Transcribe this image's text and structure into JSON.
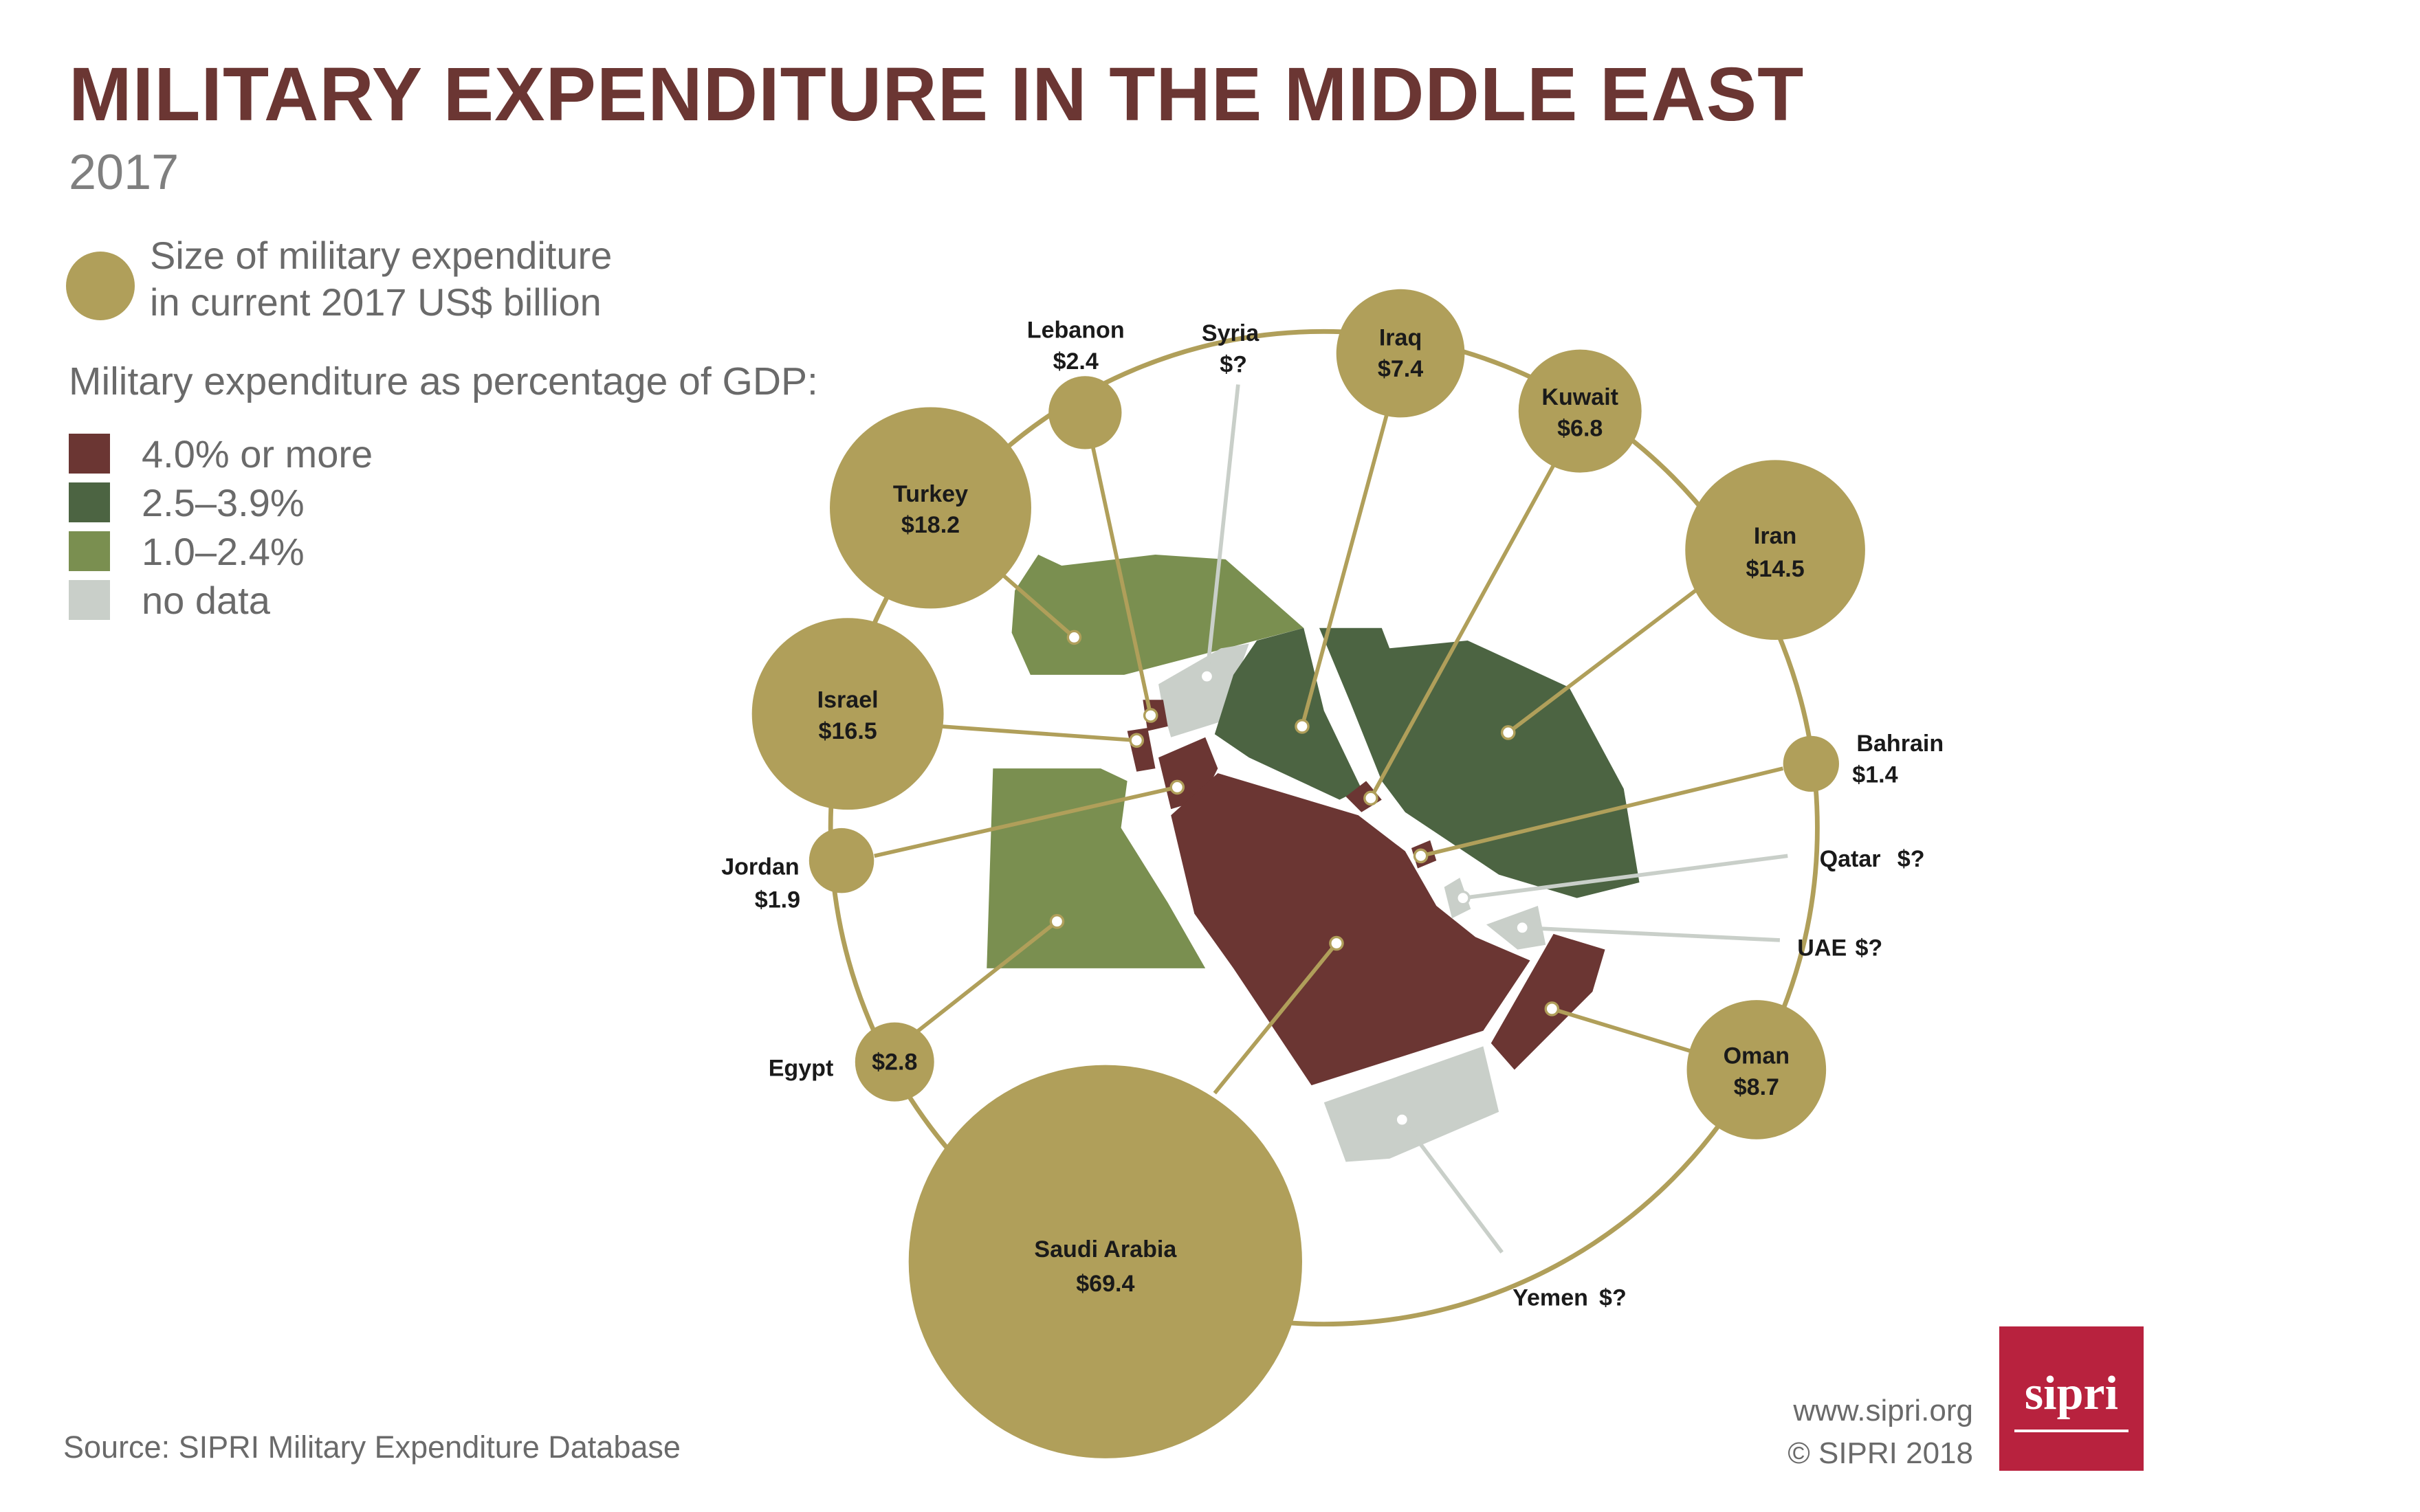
{
  "title": "MILITARY EXPENDITURE IN THE MIDDLE EAST",
  "subtitle": "2017",
  "legend": {
    "size_text": "Size of military expenditure\nin current 2017 US$ billion",
    "gdp_heading": "Military expenditure as percentage of GDP:",
    "categories": [
      {
        "label": "4.0% or more",
        "color": "#6b3633"
      },
      {
        "label": "2.5–3.9%",
        "color": "#4c6442"
      },
      {
        "label": "1.0–2.4%",
        "color": "#7a8f50"
      },
      {
        "label": "no data",
        "color": "#c9cfc9"
      }
    ]
  },
  "colors": {
    "bubble": "#b09f5a",
    "ring": "#b09f5a",
    "nodata_line": "#c9cfc9"
  },
  "chart_data": {
    "type": "bubble",
    "unit": "current 2017 US$ billion",
    "countries": [
      {
        "name": "Saudi Arabia",
        "value": 69.4,
        "label_value": "$69.4",
        "category": "4.0% or more"
      },
      {
        "name": "Turkey",
        "value": 18.2,
        "label_value": "$18.2",
        "category": "1.0–2.4%"
      },
      {
        "name": "Israel",
        "value": 16.5,
        "label_value": "$16.5",
        "category": "4.0% or more"
      },
      {
        "name": "Iran",
        "value": 14.5,
        "label_value": "$14.5",
        "category": "2.5–3.9%"
      },
      {
        "name": "Oman",
        "value": 8.7,
        "label_value": "$8.7",
        "category": "4.0% or more"
      },
      {
        "name": "Iraq",
        "value": 7.4,
        "label_value": "$7.4",
        "category": "2.5–3.9%"
      },
      {
        "name": "Kuwait",
        "value": 6.8,
        "label_value": "$6.8",
        "category": "4.0% or more"
      },
      {
        "name": "Egypt",
        "value": 2.8,
        "label_value": "$2.8",
        "category": "1.0–2.4%"
      },
      {
        "name": "Lebanon",
        "value": 2.4,
        "label_value": "$2.4",
        "category": "4.0% or more"
      },
      {
        "name": "Jordan",
        "value": 1.9,
        "label_value": "$1.9",
        "category": "4.0% or more"
      },
      {
        "name": "Bahrain",
        "value": 1.4,
        "label_value": "$1.4",
        "category": "4.0% or more"
      },
      {
        "name": "Syria",
        "value": null,
        "label_value": "$?",
        "category": "no data"
      },
      {
        "name": "Qatar",
        "value": null,
        "label_value": "$?",
        "category": "no data"
      },
      {
        "name": "UAE",
        "value": null,
        "label_value": "$?",
        "category": "no data"
      },
      {
        "name": "Yemen",
        "value": null,
        "label_value": "$?",
        "category": "no data"
      }
    ]
  },
  "source": "Source: SIPRI Military Expenditure Database",
  "credit": {
    "url": "www.sipri.org",
    "copyright": "© SIPRI 2018"
  },
  "logo": "sipri"
}
